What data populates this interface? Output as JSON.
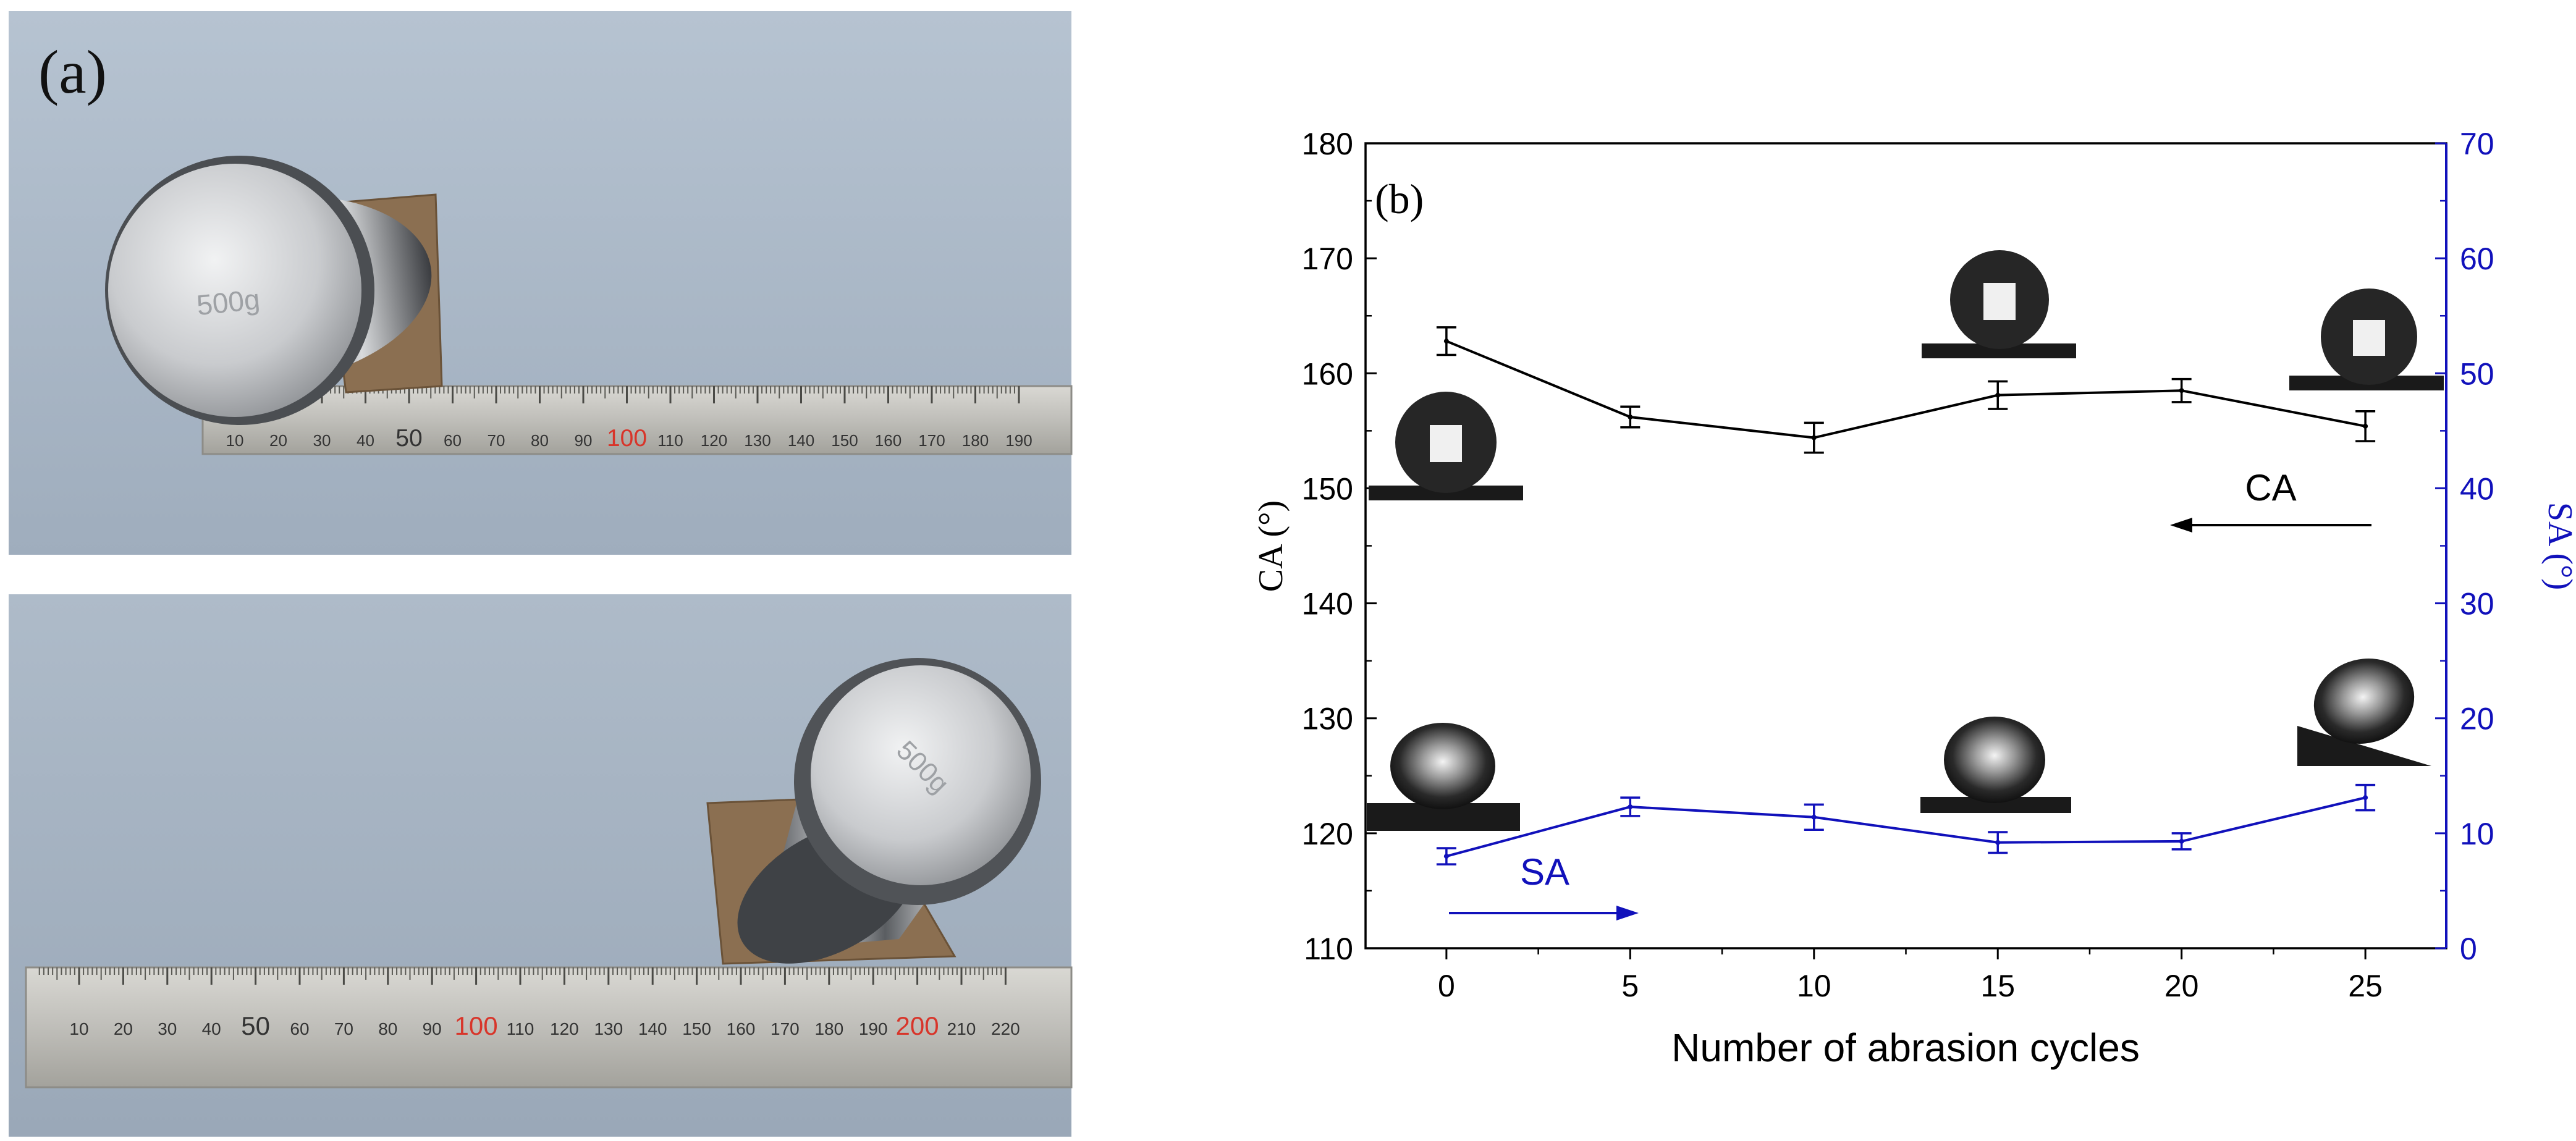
{
  "panels": {
    "a": {
      "label": "(a)",
      "weight_top_marking": "500g",
      "weight_bottom_marking": "500g",
      "ruler_top": {
        "ticks": [
          "10",
          "20",
          "30",
          "40",
          "50",
          "60",
          "70",
          "80",
          "90",
          "100",
          "110",
          "120",
          "130",
          "140",
          "150",
          "160",
          "170",
          "180",
          "190"
        ],
        "highlight": [
          "100"
        ]
      },
      "ruler_bottom": {
        "ticks": [
          "10",
          "20",
          "30",
          "40",
          "50",
          "60",
          "70",
          "80",
          "90",
          "100",
          "110",
          "120",
          "130",
          "140",
          "150",
          "160",
          "170",
          "180",
          "190",
          "200",
          "210",
          "220"
        ],
        "highlight": [
          "100",
          "200"
        ]
      }
    }
  },
  "chart_data": {
    "type": "line",
    "panel_label": "(b)",
    "xlabel": "Number of abrasion cycles",
    "ylabel_left": "CA (°)",
    "ylabel_right": "SA (°)",
    "x": [
      0,
      5,
      10,
      15,
      20,
      25
    ],
    "xlim": [
      -2.2,
      27.2
    ],
    "xticks": [
      "0",
      "5",
      "10",
      "15",
      "20",
      "25"
    ],
    "ylim_left": [
      110,
      180
    ],
    "yticks_left": [
      "110",
      "120",
      "130",
      "140",
      "150",
      "160",
      "170",
      "180"
    ],
    "ylim_right": [
      0,
      70
    ],
    "yticks_right": [
      "0",
      "10",
      "20",
      "30",
      "40",
      "50",
      "60",
      "70"
    ],
    "series": [
      {
        "name": "CA",
        "axis": "left",
        "color": "#000000",
        "values": [
          162.8,
          156.2,
          154.4,
          158.1,
          158.5,
          155.4
        ],
        "errors": [
          1.2,
          0.9,
          1.3,
          1.2,
          1.0,
          1.3
        ],
        "arrow_direction": "left"
      },
      {
        "name": "SA",
        "axis": "right",
        "color": "#1111bb",
        "values": [
          8.0,
          12.3,
          11.4,
          9.2,
          9.3,
          13.1
        ],
        "errors": [
          0.7,
          0.8,
          1.1,
          0.9,
          0.7,
          1.1
        ],
        "arrow_direction": "right"
      }
    ],
    "grid": false
  }
}
